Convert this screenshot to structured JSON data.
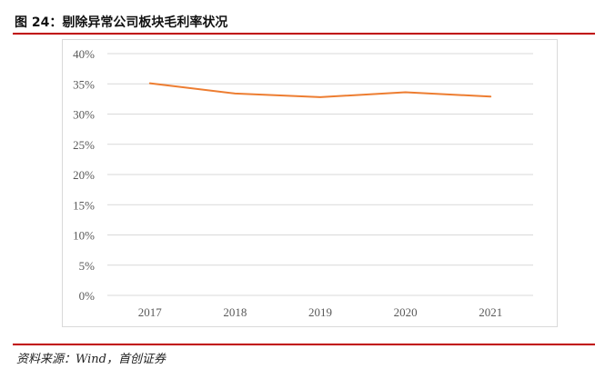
{
  "figure": {
    "title": "图 24：剔除异常公司板块毛利率状况",
    "source": "资料来源：Wind，首创证券"
  },
  "chart_data": {
    "type": "line",
    "title": "",
    "xlabel": "",
    "ylabel": "",
    "categories": [
      "2017",
      "2018",
      "2019",
      "2020",
      "2021"
    ],
    "series": [
      {
        "values": [
          35.1,
          33.4,
          32.8,
          33.6,
          32.9
        ],
        "color": "#ed7d31"
      }
    ],
    "ylim": [
      0,
      40
    ],
    "yticks": [
      "0%",
      "5%",
      "10%",
      "15%",
      "20%",
      "25%",
      "30%",
      "35%",
      "40%"
    ],
    "grid": true,
    "legend": "none"
  }
}
